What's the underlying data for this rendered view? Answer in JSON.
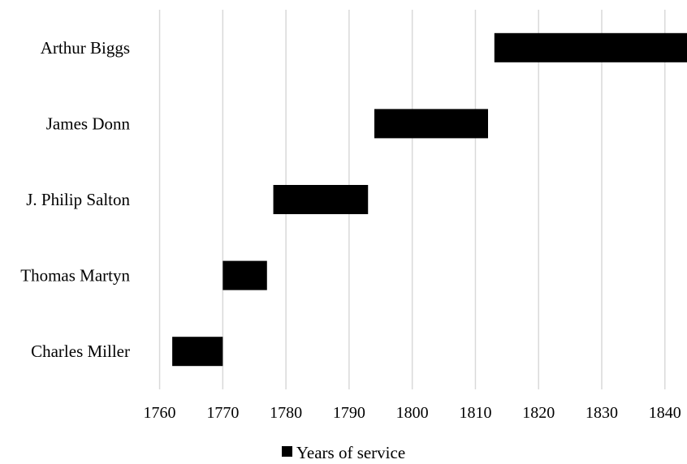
{
  "chart_data": {
    "type": "bar",
    "orientation": "horizontal-floating",
    "categories": [
      "Charles Miller",
      "Thomas Martyn",
      "J. Philip Salton",
      "James Donn",
      "Arthur Biggs"
    ],
    "series": [
      {
        "name": "Years of service",
        "ranges": [
          [
            1762,
            1770
          ],
          [
            1770,
            1777
          ],
          [
            1778,
            1793
          ],
          [
            1794,
            1812
          ],
          [
            1813,
            1844
          ]
        ]
      }
    ],
    "xticks": [
      1760,
      1770,
      1780,
      1790,
      1800,
      1810,
      1820,
      1830,
      1840
    ],
    "xlim": [
      1758,
      1843.5
    ],
    "grid": "vertical",
    "legend_position": "bottom-center",
    "colors": {
      "bar": "#000000",
      "grid": "#d9d9d9"
    }
  }
}
